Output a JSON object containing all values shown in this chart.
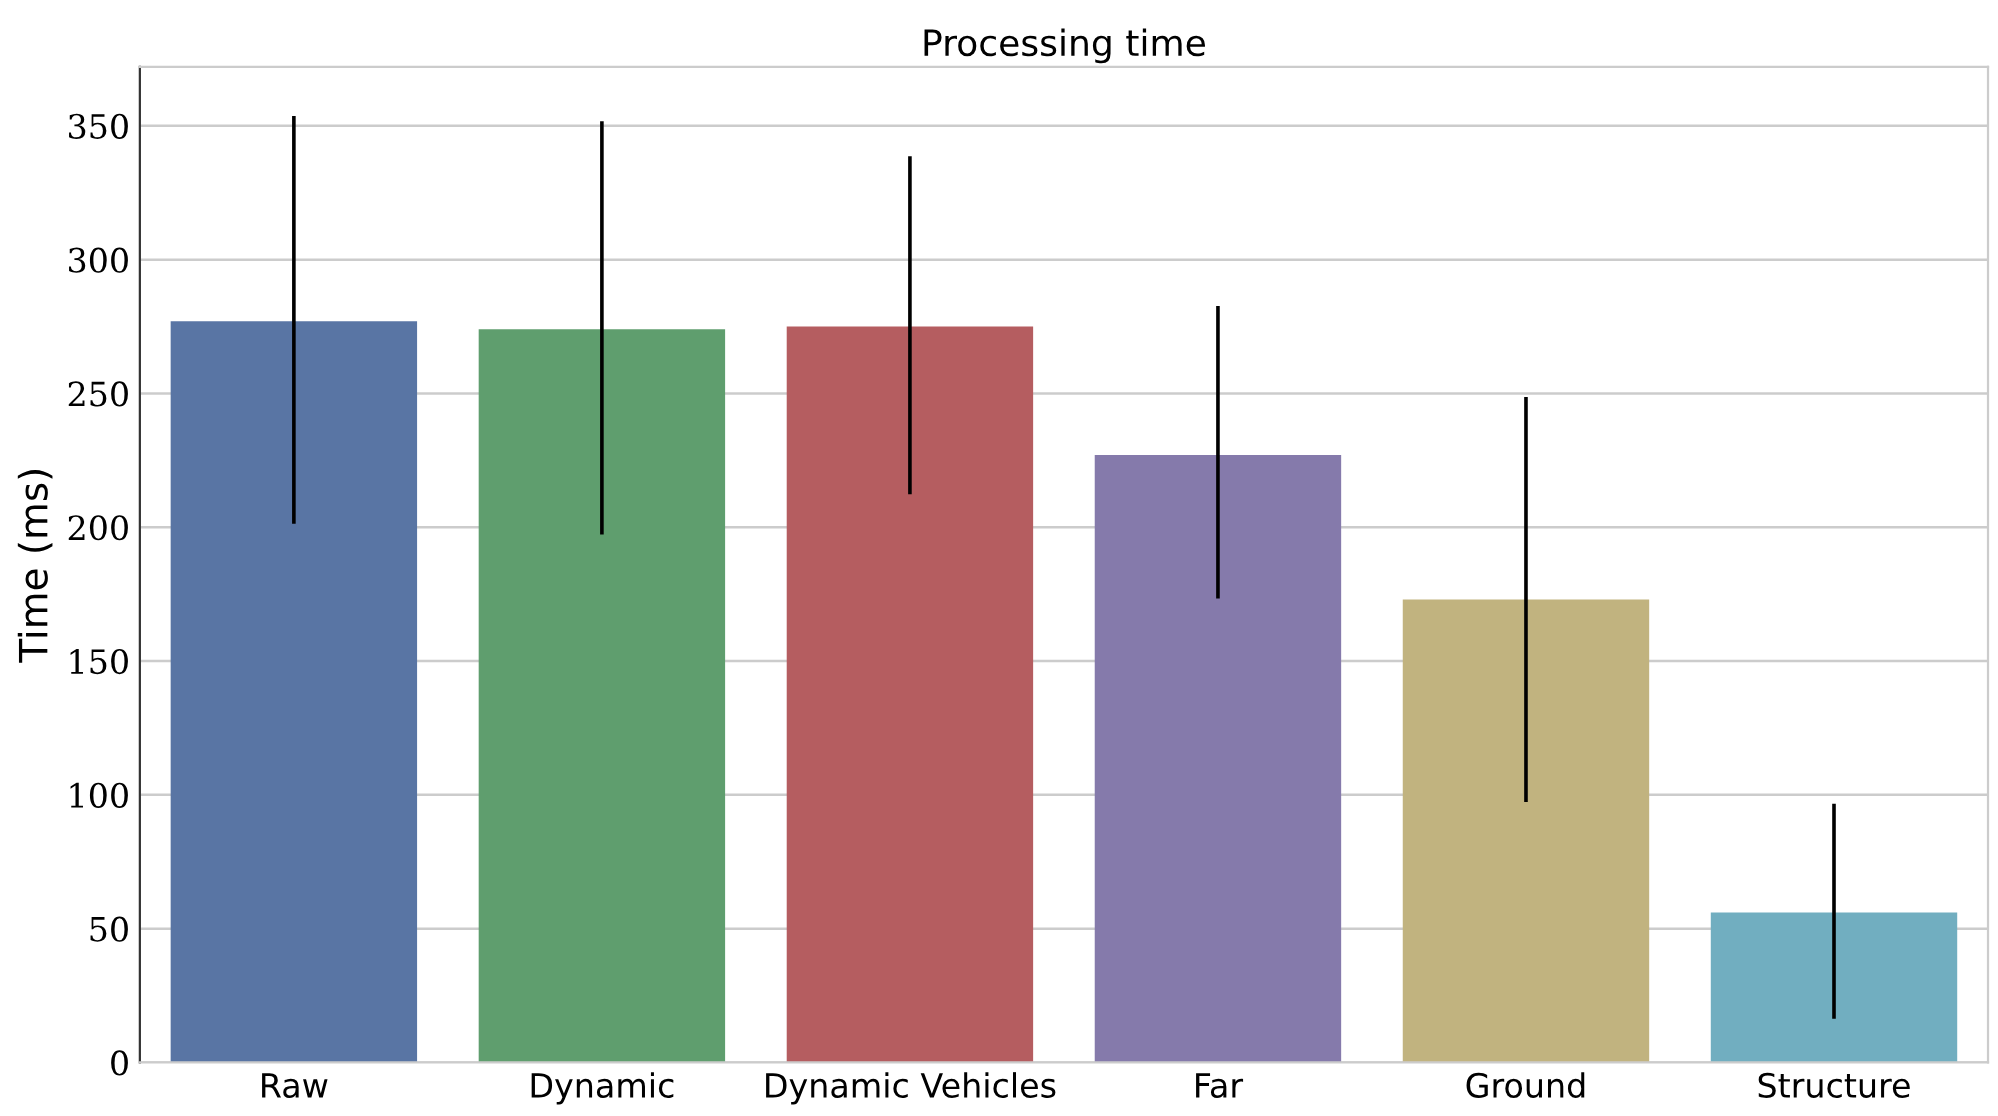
{
  "chart_data": {
    "type": "bar",
    "title": "Processing time",
    "ylabel": "Time (ms)",
    "categories": [
      "Raw",
      "Dynamic",
      "Dynamic Vehicles",
      "Far",
      "Ground",
      "Structure"
    ],
    "values": [
      277,
      274,
      275,
      227,
      173,
      56
    ],
    "colors": [
      "#5975a4",
      "#5f9e6e",
      "#b55d60",
      "#857aab",
      "#c1b37f",
      "#71aec0"
    ],
    "errors": [
      [
        202,
        353
      ],
      [
        198,
        351
      ],
      [
        213,
        338
      ],
      [
        174,
        282
      ],
      [
        98,
        248
      ],
      [
        17,
        96
      ]
    ],
    "ylim": [
      0,
      372
    ],
    "yticks": [
      0,
      50,
      100,
      150,
      200,
      250,
      300,
      350
    ],
    "grid": "y"
  }
}
